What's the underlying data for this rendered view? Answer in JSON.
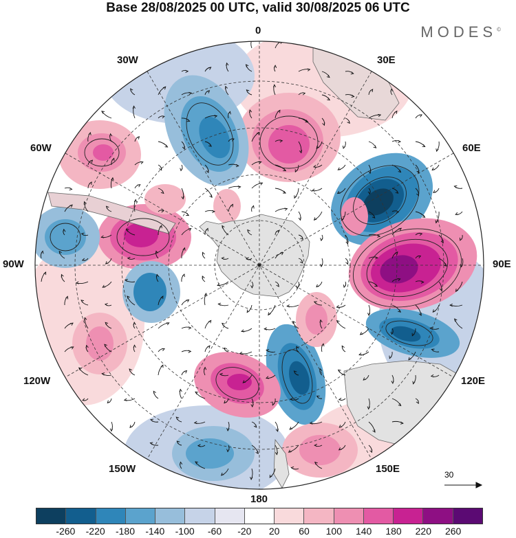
{
  "title": "Base 28/08/2025 00 UTC, valid 30/08/2025 06 UTC",
  "brand": "MODES",
  "brand_mark": "©",
  "longitude_labels": {
    "lon_0": "0",
    "lon_30e": "30E",
    "lon_60e": "60E",
    "lon_90e": "90E",
    "lon_120e": "120E",
    "lon_150e": "150E",
    "lon_180": "180",
    "lon_150w": "150W",
    "lon_120w": "120W",
    "lon_90w": "90W",
    "lon_60w": "60W",
    "lon_30w": "30W"
  },
  "reference_vector": {
    "value": "30"
  },
  "colorbar": {
    "colors": [
      "#0d3f5f",
      "#125e8e",
      "#2f86b9",
      "#5ba3cd",
      "#97bedb",
      "#c6d3e8",
      "#e6e6f1",
      "#ffffff",
      "#f9dadc",
      "#f4b6c3",
      "#ee8fb2",
      "#e35aa3",
      "#c82292",
      "#8e0f83",
      "#5b0a73"
    ],
    "ticks": [
      "-260",
      "-220",
      "-180",
      "-140",
      "-100",
      "-60",
      "-20",
      "20",
      "60",
      "100",
      "140",
      "180",
      "220",
      "260"
    ]
  },
  "colors": {
    "land": "#e2e2e2",
    "coast": "#666666",
    "frame": "#222222"
  }
}
